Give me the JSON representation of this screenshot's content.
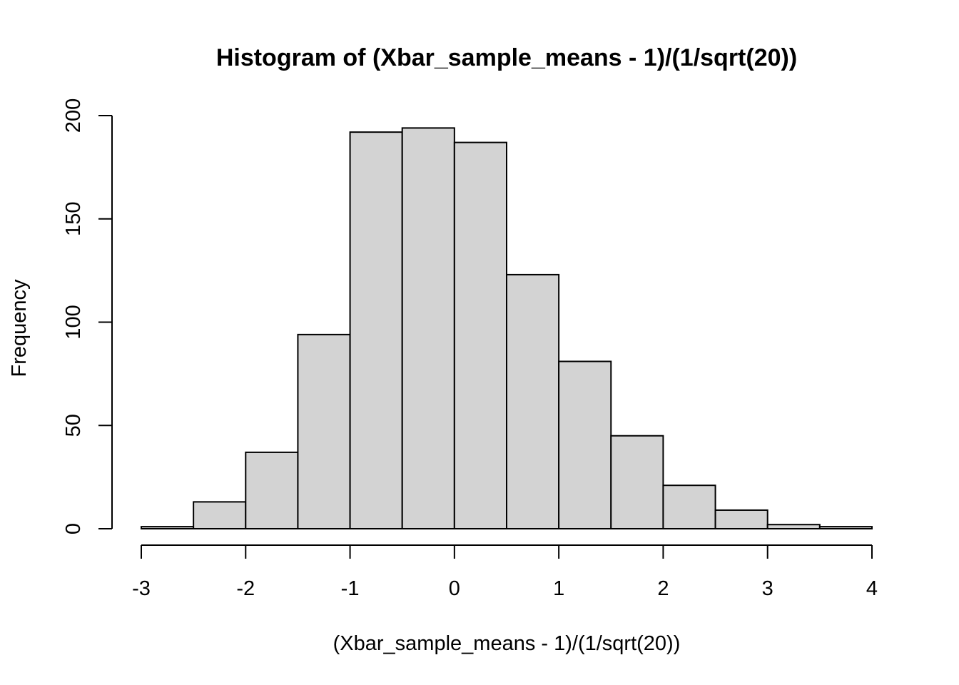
{
  "chart_data": {
    "type": "bar",
    "title": "Histogram of (Xbar_sample_means - 1)/(1/sqrt(20))",
    "xlabel": "(Xbar_sample_means - 1)/(1/sqrt(20))",
    "ylabel": "Frequency",
    "bin_edges": [
      -3,
      -2.5,
      -2,
      -1.5,
      -1,
      -0.5,
      0,
      0.5,
      1,
      1.5,
      2,
      2.5,
      3,
      3.5,
      4
    ],
    "values": [
      1,
      13,
      37,
      94,
      192,
      194,
      187,
      123,
      81,
      45,
      21,
      9,
      2,
      1
    ],
    "xlim": [
      -3,
      4
    ],
    "ylim": [
      0,
      200
    ],
    "x_ticks": [
      "-3",
      "-2",
      "-1",
      "0",
      "1",
      "2",
      "3",
      "4"
    ],
    "y_ticks": [
      "0",
      "50",
      "100",
      "150",
      "200"
    ],
    "grid": false,
    "bar_color": "#d3d3d3",
    "edge_color": "#000000"
  }
}
